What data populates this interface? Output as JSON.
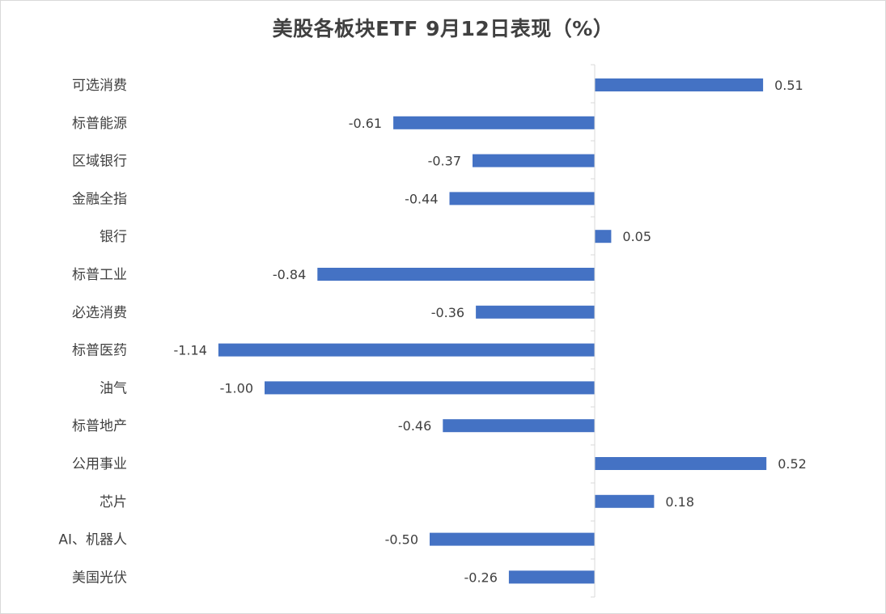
{
  "chart_data": {
    "type": "bar",
    "orientation": "horizontal",
    "title": "美股各板块ETF  9月12日表现（%）",
    "xlabel": "",
    "ylabel": "",
    "categories": [
      "可选消费",
      "标普能源",
      "区域银行",
      "金融全指",
      "银行",
      "标普工业",
      "必选消费",
      "标普医药",
      "油气",
      "标普地产",
      "公用事业",
      "芯片",
      "AI、机器人",
      "美国光伏"
    ],
    "values": [
      0.51,
      -0.61,
      -0.37,
      -0.44,
      0.05,
      -0.84,
      -0.36,
      -1.14,
      -1.0,
      -0.46,
      0.52,
      0.18,
      -0.5,
      -0.26
    ],
    "value_labels": [
      "0.51",
      "-0.61",
      "-0.37",
      "-0.44",
      "0.05",
      "-0.84",
      "-0.36",
      "-1.14",
      "-1.00",
      "-0.46",
      "0.52",
      "0.18",
      "-0.50",
      "-0.26"
    ],
    "bar_color": "#4472c4",
    "grid": false,
    "legend": "none"
  }
}
